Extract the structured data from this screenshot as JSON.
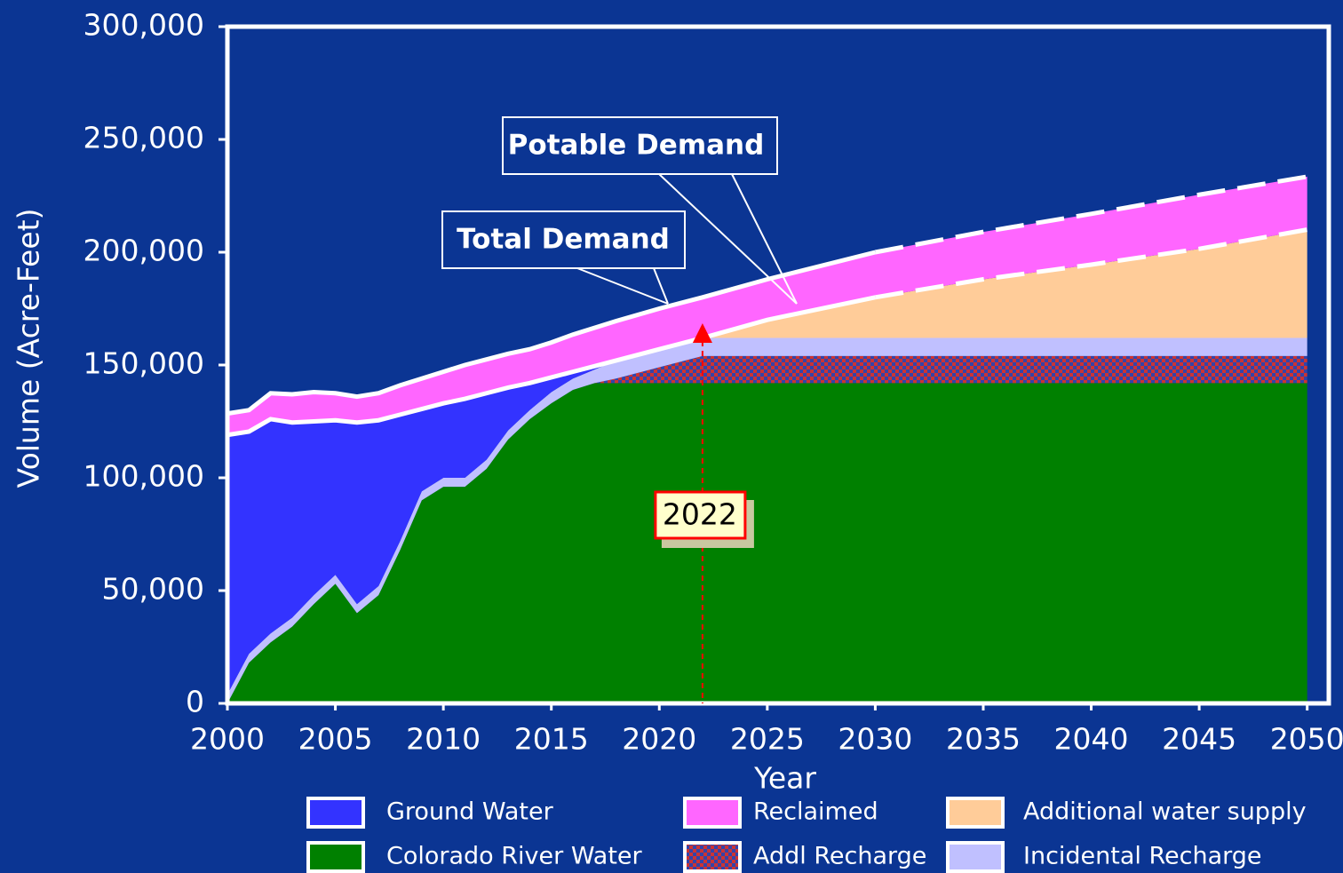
{
  "chart_data": {
    "type": "stacked_area",
    "x_label": "Year",
    "y_label": "Volume (Acre-Feet)",
    "x": [
      2000,
      2001,
      2002,
      2003,
      2004,
      2005,
      2006,
      2007,
      2008,
      2009,
      2010,
      2011,
      2012,
      2013,
      2014,
      2015,
      2016,
      2017,
      2018,
      2020,
      2022,
      2025,
      2030,
      2035,
      2040,
      2045,
      2050
    ],
    "series": [
      {
        "name": "Ground Water",
        "color": "#3333ff",
        "values": [
          115000,
          98500,
          95000,
          86500,
          77000,
          68500,
          80500,
          73500,
          56000,
          36500,
          33000,
          35000,
          29500,
          19000,
          12000,
          6500,
          3000,
          1500,
          0,
          0,
          0,
          0,
          0,
          0,
          0,
          0,
          0
        ]
      },
      {
        "name": "Colorado River Water",
        "color": "#008000",
        "values": [
          0,
          18000,
          27000,
          34000,
          44000,
          53000,
          40000,
          48000,
          68000,
          90000,
          96000,
          96000,
          104000,
          117000,
          126000,
          133000,
          139000,
          142000,
          142000,
          142000,
          142000,
          142000,
          142000,
          142000,
          142000,
          142000,
          142000
        ]
      },
      {
        "name": "Reclaimed",
        "color": "#ff66ff",
        "values": [
          9500,
          9500,
          11500,
          12500,
          13000,
          12000,
          11500,
          12000,
          13000,
          13500,
          14000,
          15000,
          15000,
          15000,
          15000,
          15500,
          16500,
          17000,
          17500,
          18000,
          18000,
          18000,
          20000,
          21000,
          22500,
          24000,
          23500
        ]
      },
      {
        "name": "Addl Recharge",
        "color": "#cc3333",
        "pattern": "checker",
        "values": [
          0,
          0,
          0,
          0,
          0,
          0,
          0,
          0,
          0,
          0,
          0,
          0,
          0,
          0,
          0,
          0,
          0,
          0,
          2000,
          7000,
          12000,
          12000,
          12000,
          12000,
          12000,
          12000,
          12000
        ]
      },
      {
        "name": "Additional water supply",
        "color": "#ffcc99",
        "values": [
          0,
          0,
          0,
          0,
          0,
          0,
          0,
          0,
          0,
          0,
          0,
          0,
          0,
          0,
          0,
          0,
          0,
          0,
          0,
          0,
          0,
          8000,
          18000,
          26000,
          32500,
          39500,
          48000
        ]
      },
      {
        "name": "Incidental Recharge",
        "color": "#c0c0ff",
        "values": [
          4000,
          4000,
          4000,
          4000,
          4000,
          4000,
          4000,
          4000,
          4000,
          4000,
          4000,
          4000,
          4000,
          4000,
          4000,
          5000,
          5000,
          6000,
          8000,
          8000,
          8000,
          8000,
          8000,
          8000,
          8000,
          8000,
          8000
        ]
      }
    ],
    "xlim": [
      2000,
      2051
    ],
    "xticks": [
      2000,
      2005,
      2010,
      2015,
      2020,
      2025,
      2030,
      2035,
      2040,
      2045,
      2050
    ],
    "ylim": [
      0,
      300000
    ],
    "yticks": [
      0,
      {
        "value": 50000,
        "label": "50,000"
      },
      {
        "value": 100000,
        "label": "100,000"
      },
      {
        "value": 150000,
        "label": "150,000"
      },
      {
        "value": 200000,
        "label": "200,000"
      },
      {
        "value": 250000,
        "label": "250,000"
      },
      {
        "value": 300000,
        "label": "300,000"
      }
    ],
    "annotations": [
      "Total Demand",
      "Potable Demand"
    ],
    "marker_year": 2022,
    "dashed_from": 2030
  }
}
